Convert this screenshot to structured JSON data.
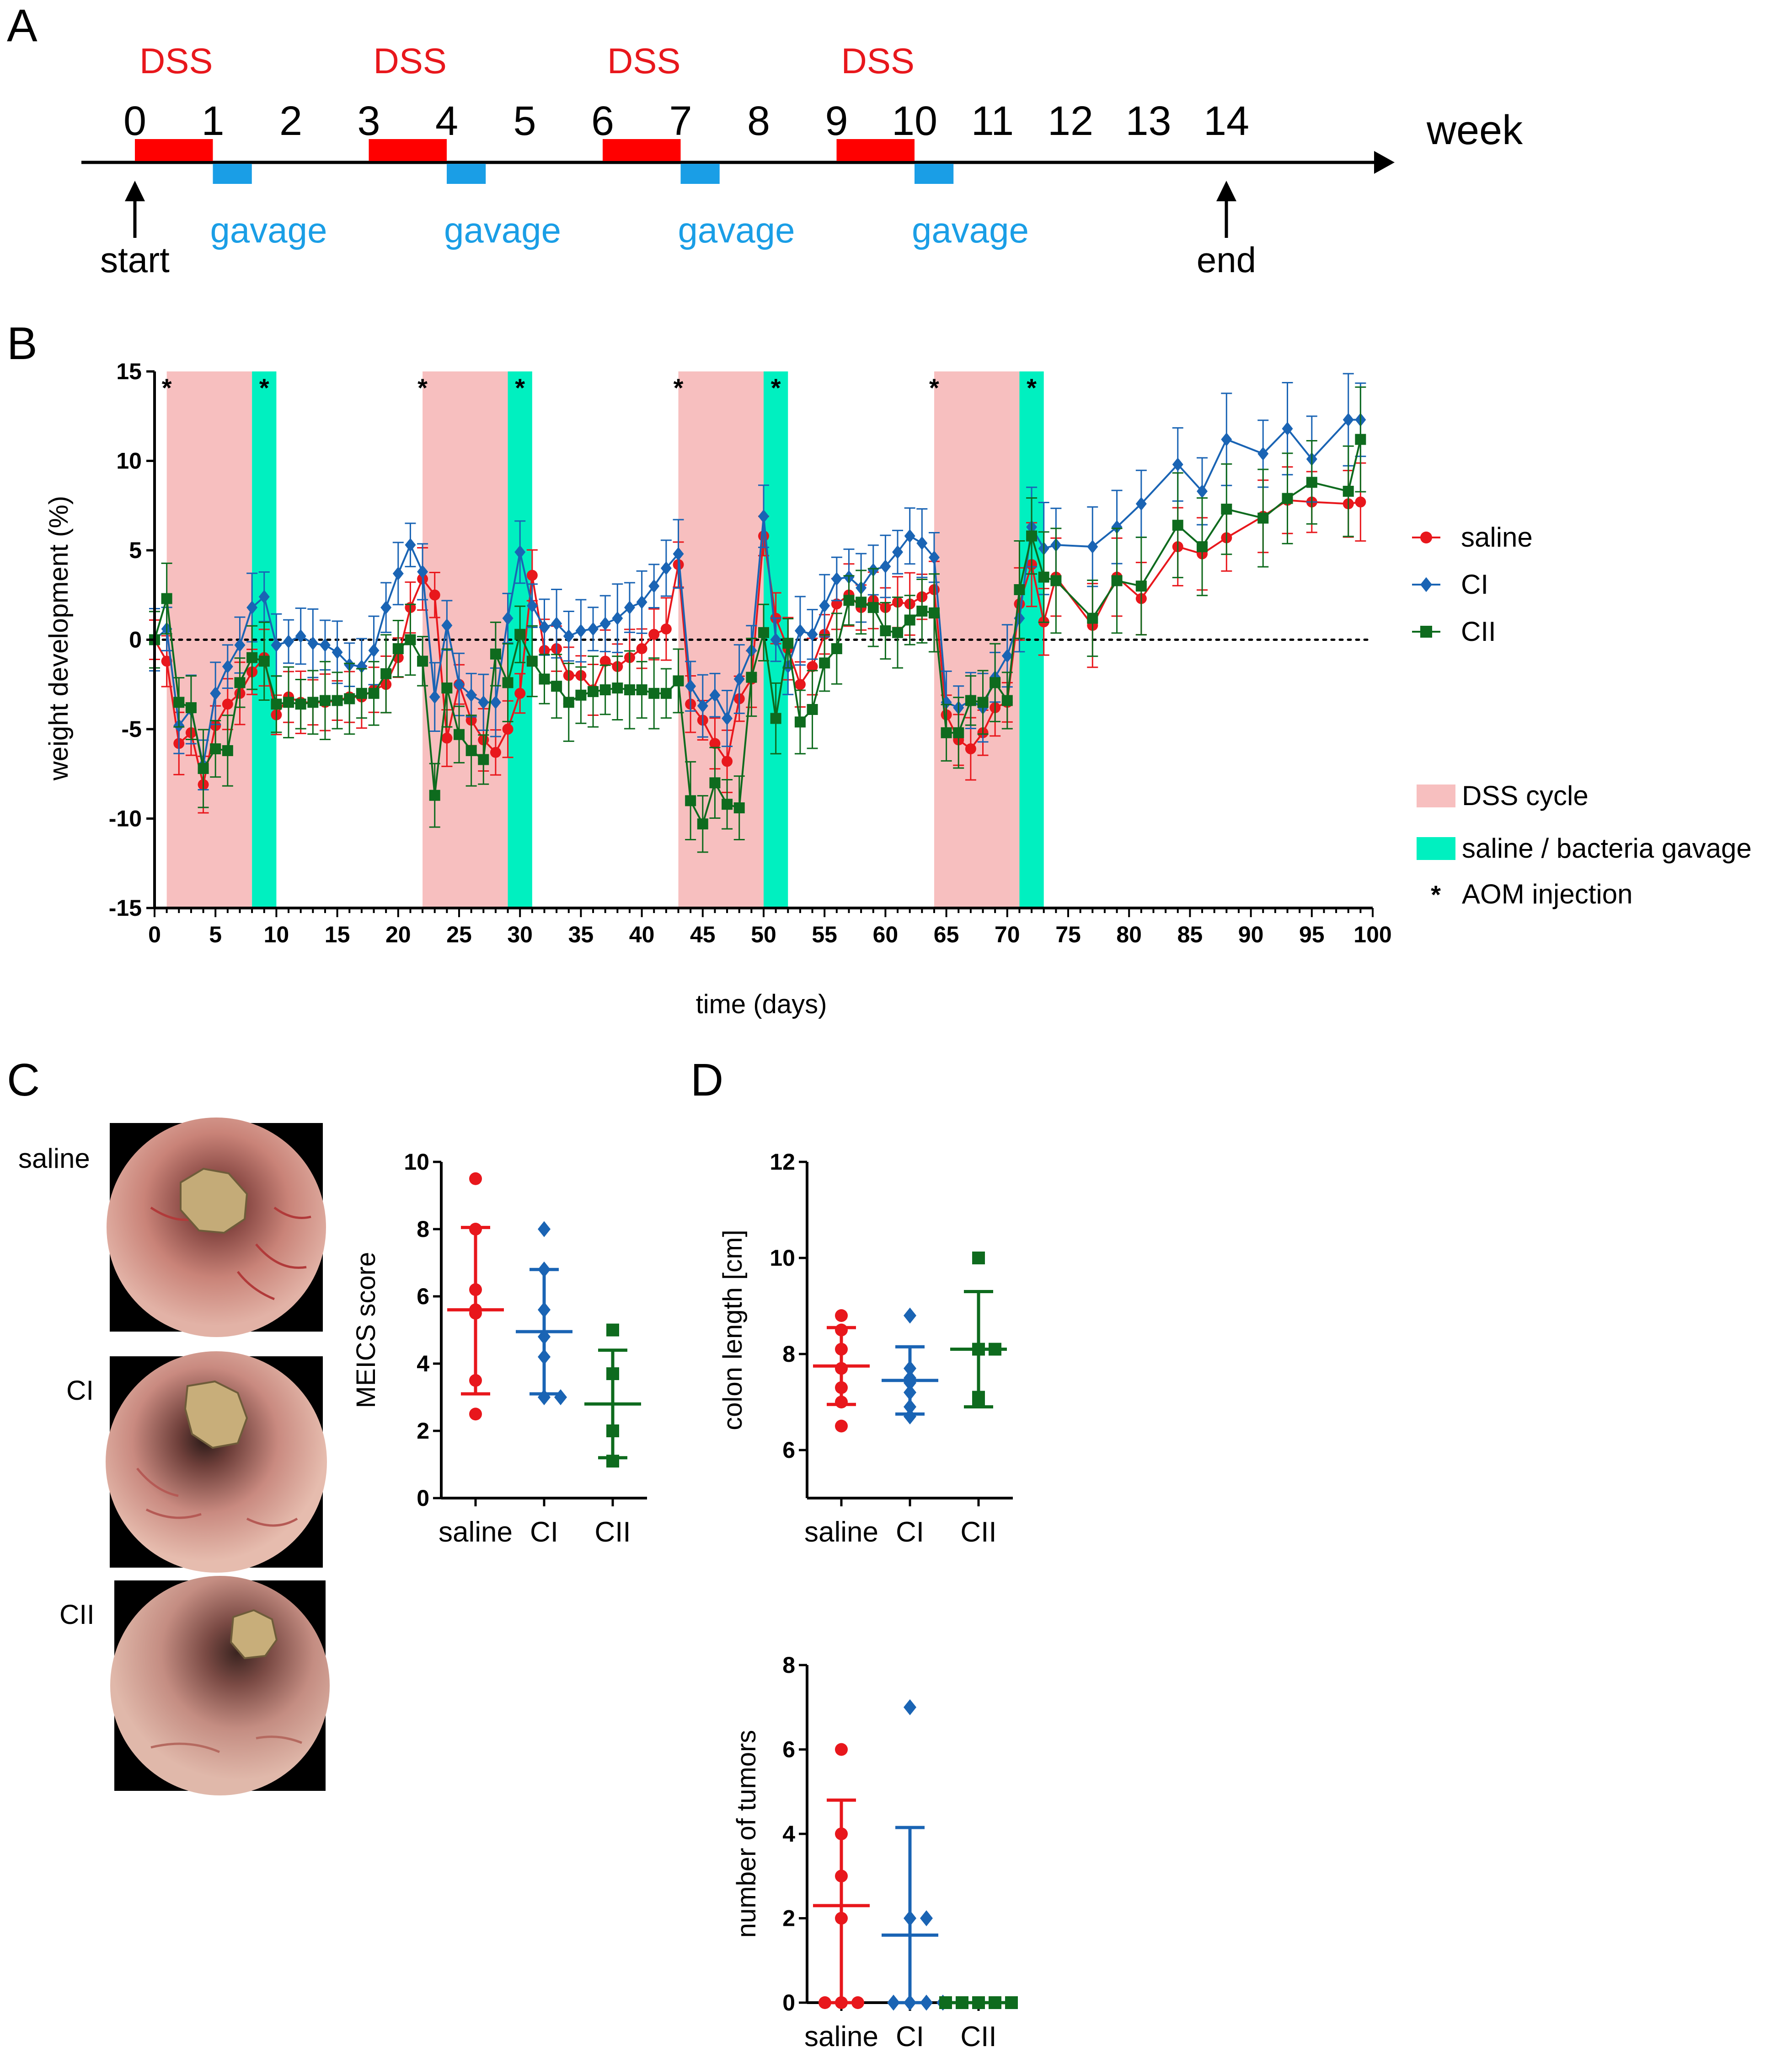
{
  "colors": {
    "saline": "#e8171c",
    "CI": "#1a64b4",
    "CII": "#0e6b1e",
    "dss": "#f7bfbf",
    "gavage": "#00f0c0",
    "timeline_dss": "#ff0000",
    "timeline_gavage": "#1a9ee6"
  },
  "panel_labels": {
    "a": "A",
    "b": "B",
    "c": "C",
    "d": "D"
  },
  "timeline": {
    "unit_label": "week",
    "weeks": [
      "0",
      "1",
      "2",
      "3",
      "4",
      "5",
      "6",
      "7",
      "8",
      "9",
      "10",
      "11",
      "12",
      "13",
      "14"
    ],
    "dss_label": "DSS",
    "dss_intervals": [
      [
        0,
        1
      ],
      [
        3,
        4
      ],
      [
        6,
        7
      ],
      [
        9,
        10
      ]
    ],
    "gavage_label": "gavage",
    "gavage_intervals": [
      [
        1,
        1.5
      ],
      [
        4,
        4.5
      ],
      [
        7,
        7.5
      ],
      [
        10,
        10.5
      ]
    ],
    "start_label": "start",
    "end_label": "end",
    "start_week": 0,
    "end_week": 14
  },
  "images_c": {
    "labels": [
      "saline",
      "CI",
      "CII"
    ],
    "icon": "endoscopy-photo"
  },
  "chart_data": [
    {
      "id": "weight",
      "type": "line",
      "title": "",
      "xlabel": "time (days)",
      "ylabel": "weight development (%)",
      "xlim": [
        0,
        100
      ],
      "ylim": [
        -15,
        15
      ],
      "xticks": [
        0,
        5,
        10,
        15,
        20,
        25,
        30,
        35,
        40,
        45,
        50,
        55,
        60,
        65,
        70,
        75,
        80,
        85,
        90,
        95,
        100
      ],
      "yticks": [
        -15,
        -10,
        -5,
        0,
        5,
        10,
        15
      ],
      "reference_line": 0,
      "dss_cycles": [
        [
          1,
          8
        ],
        [
          22,
          29
        ],
        [
          43,
          50
        ],
        [
          64,
          71
        ]
      ],
      "gavage_periods": [
        [
          8,
          10
        ],
        [
          29,
          31
        ],
        [
          50,
          52
        ],
        [
          71,
          73
        ]
      ],
      "aom_days": [
        1,
        9,
        22,
        30,
        43,
        51,
        64,
        72
      ],
      "legend": [
        {
          "name": "saline",
          "marker": "circle"
        },
        {
          "name": "CI",
          "marker": "diamond"
        },
        {
          "name": "CII",
          "marker": "square"
        }
      ],
      "legend_extra": {
        "dss": "DSS cycle",
        "gavage": "saline / bacteria gavage",
        "aom_symbol": "*",
        "aom": "AOM injection"
      },
      "x": [
        0,
        1,
        2,
        3,
        4,
        5,
        6,
        7,
        8,
        9,
        10,
        11,
        12,
        13,
        14,
        15,
        16,
        17,
        18,
        19,
        20,
        21,
        22,
        23,
        24,
        25,
        26,
        27,
        28,
        29,
        30,
        31,
        32,
        33,
        34,
        35,
        36,
        37,
        38,
        39,
        40,
        41,
        42,
        43,
        44,
        45,
        46,
        47,
        48,
        49,
        50,
        51,
        52,
        53,
        54,
        55,
        56,
        57,
        58,
        59,
        60,
        61,
        62,
        63,
        64,
        65,
        66,
        67,
        68,
        69,
        70,
        71,
        72,
        73,
        74,
        77,
        79,
        81,
        84,
        86,
        88,
        91,
        93,
        95,
        98,
        99
      ],
      "series": [
        {
          "name": "saline",
          "values": [
            0,
            -1.2,
            -5.8,
            -5.2,
            -8.1,
            -4.8,
            -3.6,
            -3,
            -1.8,
            -1,
            -4.2,
            -3.2,
            -3.5,
            -3.5,
            -3.5,
            -3.4,
            -3.2,
            -3.2,
            -2.8,
            -2.5,
            -1,
            1.8,
            3.4,
            2.5,
            -5.5,
            -2.5,
            -4.5,
            -5.6,
            -6.3,
            -5,
            -3,
            3.6,
            -0.6,
            -0.5,
            -2,
            -2,
            -2.8,
            -1.2,
            -1.5,
            -1,
            -0.5,
            0.3,
            0.6,
            4.2,
            -3.6,
            -4.5,
            -5.8,
            -6.8,
            -3.3,
            -2.2,
            5.8,
            1.2,
            -0.5,
            -2.5,
            -1.5,
            0.3,
            2,
            2.5,
            1.8,
            2.2,
            1.8,
            2.1,
            2,
            2.4,
            2.8,
            -4.2,
            -5.6,
            -6.1,
            -5.2,
            -3.8,
            -3.5,
            2,
            4.2,
            1,
            3.5,
            0.8,
            3.5,
            2.3,
            5.2,
            4.8,
            5.7,
            6.9,
            7.8,
            7.7,
            7.6,
            7.7
          ]
        },
        {
          "name": "CI",
          "values": [
            0,
            0.6,
            -4.8,
            -3.9,
            -7,
            -3,
            -1.5,
            -0.3,
            1.8,
            2.4,
            -0.3,
            -0.1,
            0.2,
            -0.2,
            -0.3,
            -0.7,
            -1.4,
            -1.5,
            -0.6,
            1.8,
            3.7,
            5.3,
            3.8,
            -3.2,
            0.8,
            -2.5,
            -3.1,
            -3.5,
            -3.5,
            1.2,
            4.9,
            1.9,
            0.7,
            0.9,
            0.2,
            0.5,
            0.6,
            0.9,
            1.2,
            1.8,
            2.1,
            3,
            4,
            4.8,
            -2.6,
            -3.7,
            -3.1,
            -4.4,
            -2.2,
            -0.6,
            6.9,
            0,
            -1.5,
            0.5,
            0.3,
            1.9,
            3.4,
            3.5,
            2.9,
            3.9,
            4.1,
            4.9,
            5.8,
            5.4,
            4.6,
            -3.5,
            -3.8,
            -3.4,
            -3.8,
            -2.1,
            -0.9,
            1.2,
            6.3,
            5.1,
            5.3,
            5.2,
            6.3,
            7.6,
            9.8,
            8.3,
            11.2,
            10.4,
            11.8,
            10.1,
            12.3,
            12.3
          ]
        },
        {
          "name": "CII",
          "values": [
            0,
            2.3,
            -3.5,
            -3.8,
            -7.2,
            -6.1,
            -6.2,
            -2.4,
            -1,
            -1.2,
            -3.6,
            -3.5,
            -3.6,
            -3.5,
            -3.4,
            -3.4,
            -3.3,
            -3,
            -3,
            -1.9,
            -0.5,
            0,
            -1.2,
            -8.7,
            -2.7,
            -5.3,
            -6.2,
            -6.7,
            -0.8,
            -2.4,
            0.3,
            -1.2,
            -2.2,
            -2.6,
            -3.5,
            -3.1,
            -2.9,
            -2.8,
            -2.7,
            -2.8,
            -2.8,
            -3,
            -3,
            -2.3,
            -9,
            -10.3,
            -8,
            -9.2,
            -9.4,
            -2.1,
            0.4,
            -4.4,
            -0.2,
            -4.6,
            -3.9,
            -1.3,
            -0.5,
            2.2,
            2.1,
            1.8,
            0.5,
            0.4,
            1.1,
            1.6,
            1.5,
            -5.2,
            -5.2,
            -3.4,
            -3.5,
            -2.4,
            -3.4,
            2.8,
            5.8,
            3.5,
            3.3,
            1.2,
            3.3,
            3,
            6.4,
            5.2,
            7.3,
            6.8,
            7.9,
            8.8,
            8.3,
            11.2
          ]
        }
      ]
    },
    {
      "id": "meics",
      "type": "scatter",
      "title": "",
      "xlabel": "",
      "ylabel": "MEICS score",
      "ylim": [
        0,
        10
      ],
      "yticks": [
        0,
        2,
        4,
        6,
        8,
        10
      ],
      "categories": [
        "saline",
        "CI",
        "CII"
      ],
      "series": [
        {
          "name": "saline",
          "marker": "circle",
          "points": [
            9.5,
            6.2,
            5.6,
            5.5,
            3.5,
            2.5,
            8
          ],
          "mean": 5.6,
          "sd_low": 3.1,
          "sd_high": 8.05
        },
        {
          "name": "CI",
          "marker": "diamond",
          "points": [
            8,
            6.8,
            5.6,
            4.8,
            4.2,
            3,
            3
          ],
          "mean": 4.95,
          "sd_low": 3.1,
          "sd_high": 6.8
        },
        {
          "name": "CII",
          "marker": "square",
          "points": [
            5,
            3.7,
            2,
            1.1
          ],
          "mean": 2.8,
          "sd_low": 1.2,
          "sd_high": 4.4
        }
      ]
    },
    {
      "id": "colon",
      "type": "scatter",
      "title": "",
      "xlabel": "",
      "ylabel": "colon length [cm]",
      "ylim": [
        5,
        12
      ],
      "yticks": [
        6,
        8,
        10,
        12
      ],
      "categories": [
        "saline",
        "CI",
        "CII"
      ],
      "series": [
        {
          "name": "saline",
          "marker": "circle",
          "points": [
            8.8,
            8.5,
            8.1,
            7.7,
            7.3,
            7,
            6.5
          ],
          "mean": 7.75,
          "sd_low": 6.95,
          "sd_high": 8.55
        },
        {
          "name": "CI",
          "marker": "diamond",
          "points": [
            8.8,
            7.7,
            7.5,
            7.4,
            7.2,
            6.9,
            6.7
          ],
          "mean": 7.45,
          "sd_low": 6.75,
          "sd_high": 8.15
        },
        {
          "name": "CII",
          "marker": "square",
          "points": [
            10,
            8.1,
            8.1,
            7.1,
            7
          ],
          "mean": 8.1,
          "sd_low": 6.9,
          "sd_high": 9.3
        }
      ]
    },
    {
      "id": "tumors",
      "type": "scatter",
      "title": "",
      "xlabel": "",
      "ylabel": "number of tumors",
      "ylim": [
        0,
        8
      ],
      "yticks": [
        0,
        2,
        4,
        6,
        8
      ],
      "categories": [
        "saline",
        "CI",
        "CII"
      ],
      "series": [
        {
          "name": "saline",
          "marker": "circle",
          "points": [
            6,
            4,
            3,
            2,
            0,
            0,
            0
          ],
          "mean": 2.3,
          "sd_low": 0,
          "sd_high": 4.8
        },
        {
          "name": "CI",
          "marker": "diamond",
          "points": [
            7,
            2,
            2,
            0,
            0,
            0,
            0
          ],
          "mean": 1.6,
          "sd_low": 0,
          "sd_high": 4.15
        },
        {
          "name": "CII",
          "marker": "square",
          "points": [
            0,
            0,
            0,
            0,
            0
          ],
          "mean": 0,
          "sd_low": 0,
          "sd_high": 0
        }
      ]
    }
  ]
}
